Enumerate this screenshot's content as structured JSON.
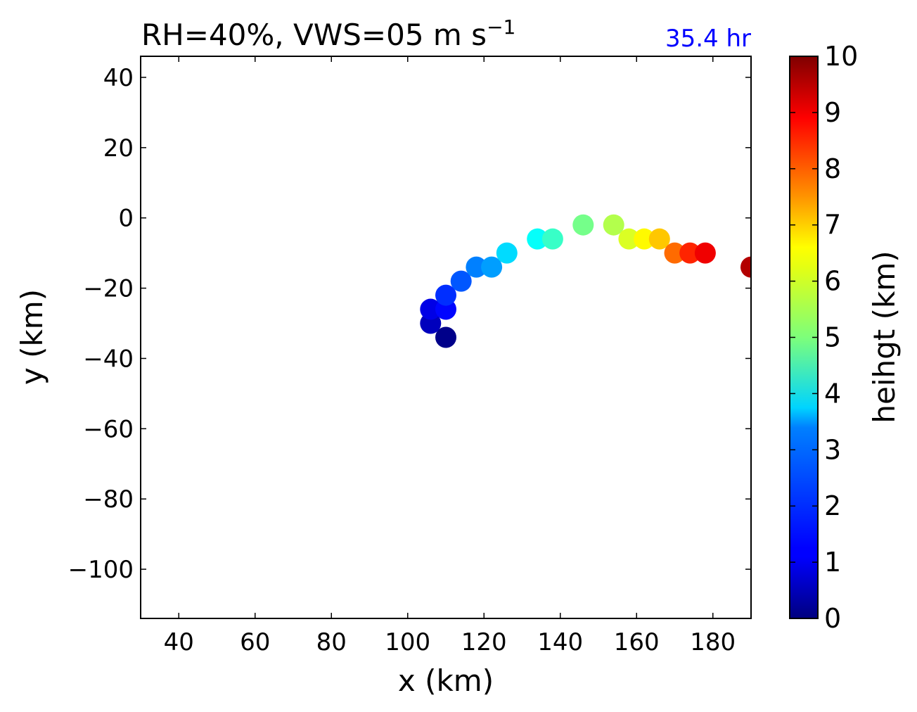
{
  "chart_data": {
    "type": "scatter",
    "title": "RH=40%, VWS=05 m s",
    "title_superscript": "−1",
    "time_label": "35.4 hr",
    "time_label_color": "#0000ff",
    "xlabel": "x (km)",
    "ylabel": "y (km)",
    "xlim": [
      30,
      190
    ],
    "ylim": [
      -114,
      46
    ],
    "xticks": [
      40,
      60,
      80,
      100,
      120,
      140,
      160,
      180
    ],
    "xtick_labels": [
      "40",
      "60",
      "80",
      "100",
      "120",
      "140",
      "160",
      "180"
    ],
    "yticks": [
      40,
      20,
      0,
      -20,
      -40,
      -60,
      -80,
      -100
    ],
    "ytick_labels": [
      "40",
      "20",
      "0",
      "−20",
      "−40",
      "−60",
      "−80",
      "−100"
    ],
    "grid": false,
    "colorbar": {
      "label": "heihgt (km)",
      "colormap": "jet",
      "range": [
        0,
        10
      ],
      "ticks": [
        0,
        1,
        2,
        3,
        4,
        5,
        6,
        7,
        8,
        9,
        10
      ],
      "tick_labels": [
        "0",
        "1",
        "2",
        "3",
        "4",
        "5",
        "6",
        "7",
        "8",
        "9",
        "10"
      ]
    },
    "points": [
      {
        "x": 110,
        "y": -34,
        "height": 0.1
      },
      {
        "x": 106,
        "y": -30,
        "height": 0.6
      },
      {
        "x": 106,
        "y": -26,
        "height": 1.0
      },
      {
        "x": 110,
        "y": -26,
        "height": 1.3
      },
      {
        "x": 110,
        "y": -22,
        "height": 1.7
      },
      {
        "x": 114,
        "y": -18,
        "height": 2.1
      },
      {
        "x": 118,
        "y": -14,
        "height": 2.5
      },
      {
        "x": 122,
        "y": -14,
        "height": 2.8
      },
      {
        "x": 126,
        "y": -10,
        "height": 3.4
      },
      {
        "x": 134,
        "y": -6,
        "height": 3.8
      },
      {
        "x": 138,
        "y": -6,
        "height": 4.3
      },
      {
        "x": 146,
        "y": -2,
        "height": 4.9
      },
      {
        "x": 154,
        "y": -2,
        "height": 5.5
      },
      {
        "x": 158,
        "y": -6,
        "height": 5.9
      },
      {
        "x": 162,
        "y": -6,
        "height": 6.3
      },
      {
        "x": 166,
        "y": -6,
        "height": 6.8
      },
      {
        "x": 170,
        "y": -10,
        "height": 7.7
      },
      {
        "x": 174,
        "y": -10,
        "height": 8.4
      },
      {
        "x": 178,
        "y": -10,
        "height": 8.9
      },
      {
        "x": 190,
        "y": -14,
        "height": 9.5
      }
    ]
  }
}
